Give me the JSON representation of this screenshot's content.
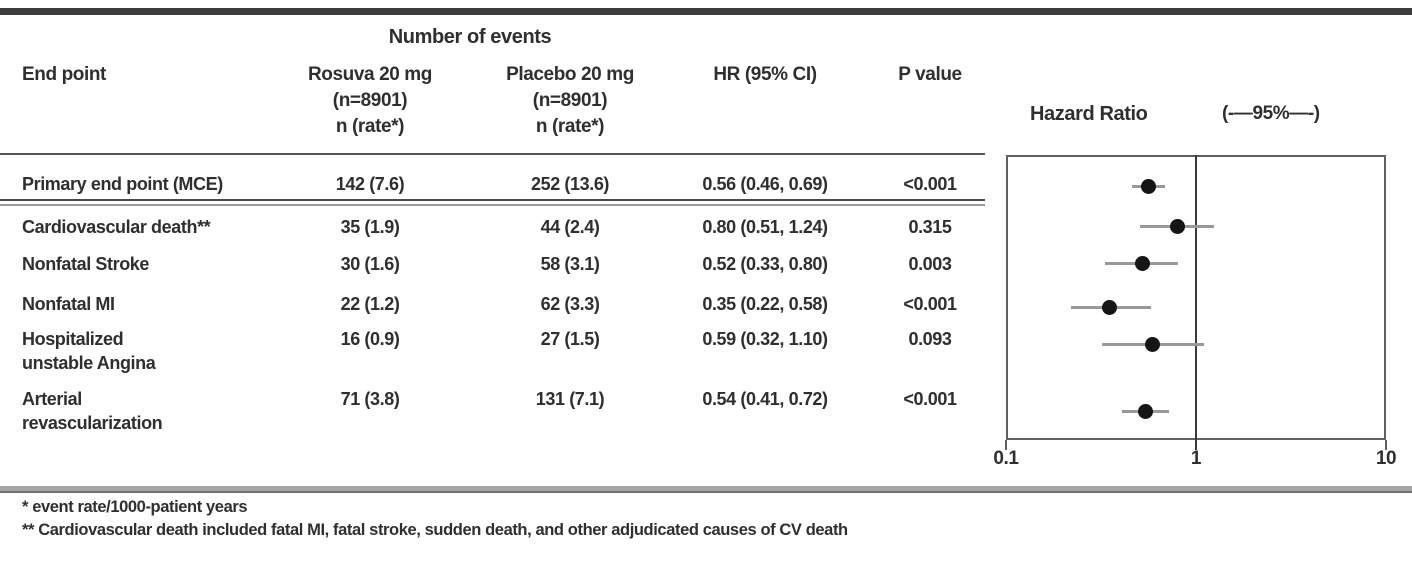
{
  "figure": {
    "group_header": "Number of events",
    "columns": {
      "endpoint": "End point",
      "rosuva": [
        "Rosuva 20 mg",
        "(n=8901)",
        "n (rate*)"
      ],
      "placebo": [
        "Placebo 20 mg",
        "(n=8901)",
        "n (rate*)"
      ],
      "hr": "HR (95% CI)",
      "p": "P value"
    },
    "rows": [
      {
        "endpoint": [
          "Primary end point (MCE)"
        ],
        "rosuva": "142 (7.6)",
        "placebo": "252 (13.6)",
        "hr_ci": "0.56 (0.46, 0.69)",
        "p": "<0.001"
      },
      {
        "endpoint": [
          "Cardiovascular death**"
        ],
        "rosuva": "35 (1.9)",
        "placebo": "44 (2.4)",
        "hr_ci": "0.80 (0.51, 1.24)",
        "p": "0.315"
      },
      {
        "endpoint": [
          "Nonfatal Stroke"
        ],
        "rosuva": "30 (1.6)",
        "placebo": "58 (3.1)",
        "hr_ci": "0.52 (0.33, 0.80)",
        "p": "0.003"
      },
      {
        "endpoint": [
          "Nonfatal MI"
        ],
        "rosuva": "22 (1.2)",
        "placebo": "62 (3.3)",
        "hr_ci": "0.35 (0.22, 0.58)",
        "p": "<0.001"
      },
      {
        "endpoint": [
          "Hospitalized",
          "unstable Angina"
        ],
        "rosuva": "16 (0.9)",
        "placebo": "27 (1.5)",
        "hr_ci": "0.59 (0.32, 1.10)",
        "p": "0.093"
      },
      {
        "endpoint": [
          "Arterial",
          "revascularization"
        ],
        "rosuva": "71 (3.8)",
        "placebo": "131 (7.1)",
        "hr_ci": "0.54 (0.41, 0.72)",
        "p": "<0.001"
      }
    ],
    "plot": {
      "title": "Hazard Ratio",
      "ci_legend": "(-—95%—-)",
      "axis_tick_labels": [
        "0.1",
        "1",
        "10"
      ]
    },
    "footnotes": [
      "* event rate/1000-patient years",
      "** Cardiovascular death included fatal MI, fatal stroke, sudden death, and other adjudicated causes of CV death"
    ]
  },
  "chart_data": {
    "type": "scatter",
    "subtype": "forest-plot",
    "title": "Hazard Ratio",
    "ci_legend": "(-—95%—-)",
    "xscale": "log",
    "xlim": [
      0.1,
      10
    ],
    "x_ticks": [
      0.1,
      1,
      10
    ],
    "reference_line_x": 1,
    "series": [
      {
        "name": "Primary end point (MCE)",
        "hr": 0.56,
        "ci_low": 0.46,
        "ci_high": 0.69
      },
      {
        "name": "Cardiovascular death**",
        "hr": 0.8,
        "ci_low": 0.51,
        "ci_high": 1.24
      },
      {
        "name": "Nonfatal Stroke",
        "hr": 0.52,
        "ci_low": 0.33,
        "ci_high": 0.8
      },
      {
        "name": "Nonfatal MI",
        "hr": 0.35,
        "ci_low": 0.22,
        "ci_high": 0.58
      },
      {
        "name": "Hospitalized unstable Angina",
        "hr": 0.59,
        "ci_low": 0.32,
        "ci_high": 1.1
      },
      {
        "name": "Arterial revascularization",
        "hr": 0.54,
        "ci_low": 0.41,
        "ci_high": 0.72
      }
    ]
  },
  "colors": {
    "text": "#2f2f2f",
    "rule_dark": "#3d3d3d",
    "rule_mid": "#555555",
    "rule_light": "#9a9a9a",
    "bottom_bar": "#9e9e9e",
    "ci_line": "#999999",
    "point": "#151515"
  }
}
